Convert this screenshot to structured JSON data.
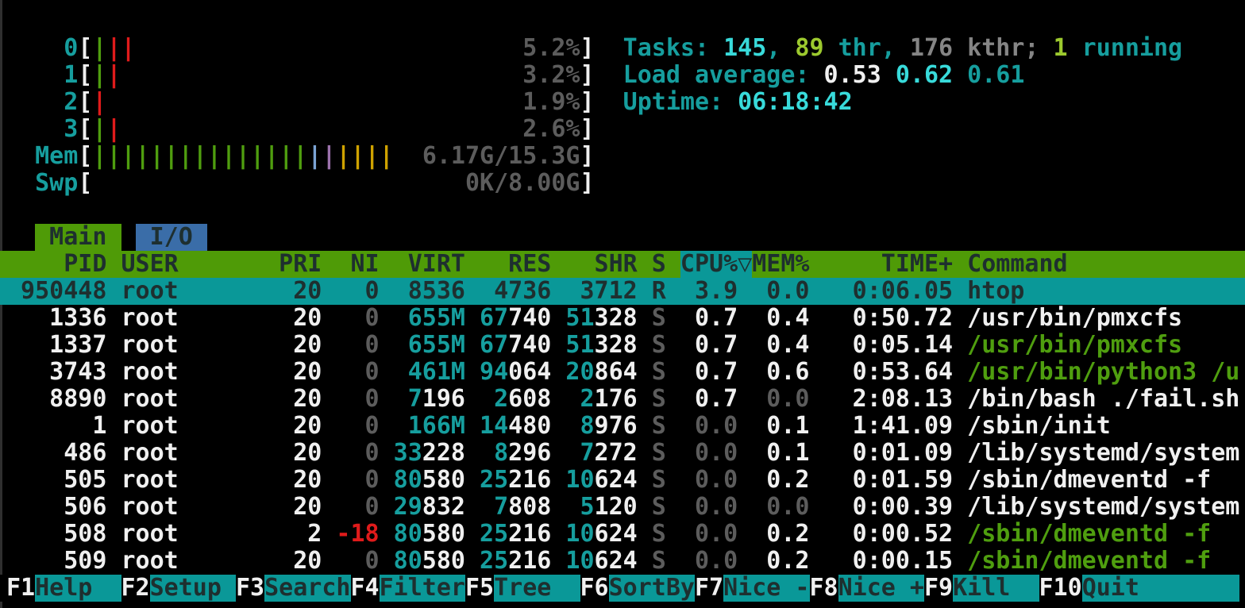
{
  "app_title": "htop",
  "colors": {
    "background": "#000000",
    "foreground": "#f0f0f0",
    "cyan": "#169e9e",
    "bright_cyan": "#38dada",
    "green": "#4f9e0f",
    "bright_green": "#9cc92e",
    "red": "#e01b1b",
    "dim_gray": "#5c5c5c",
    "kernel_gray": "#858585",
    "selection_bg": "#0a9898",
    "header_bg": "#4f9b07",
    "tab_io_bg": "#3a6da8",
    "dark_text": "#1e2f2f",
    "bar_blue": "#7ba3d4",
    "bar_purple": "#9c72ad",
    "bar_yellow": "#cfa200"
  },
  "meters": [
    {
      "name": "cpu-0",
      "label": "0",
      "value": "5.2%",
      "bars": [
        "g",
        "r",
        "r"
      ]
    },
    {
      "name": "cpu-1",
      "label": "1",
      "value": "3.2%",
      "bars": [
        "g",
        "r"
      ]
    },
    {
      "name": "cpu-2",
      "label": "2",
      "value": "1.9%",
      "bars": [
        "r"
      ]
    },
    {
      "name": "cpu-3",
      "label": "3",
      "value": "2.6%",
      "bars": [
        "g",
        "r"
      ]
    },
    {
      "name": "memory",
      "label": "Mem",
      "value": "6.17G/15.3G",
      "bars": [
        "g",
        "g",
        "g",
        "g",
        "g",
        "g",
        "g",
        "g",
        "g",
        "g",
        "g",
        "g",
        "g",
        "g",
        "g",
        "b",
        "p",
        "y",
        "y",
        "y",
        "y"
      ]
    },
    {
      "name": "swap",
      "label": "Swp",
      "value": "0K/8.00G",
      "bars": []
    }
  ],
  "summary_lines": [
    {
      "name": "tasks-summary",
      "segments": [
        [
          "Tasks: ",
          "cy"
        ],
        [
          "145",
          "bc"
        ],
        [
          ", ",
          "cy"
        ],
        [
          "89",
          "bg"
        ],
        [
          " thr",
          "cy"
        ],
        [
          ", ",
          "cy"
        ],
        [
          "176 kthr",
          "d2"
        ],
        [
          "; ",
          "d2"
        ],
        [
          "1",
          "bg"
        ],
        [
          " running",
          "cy"
        ]
      ]
    },
    {
      "name": "load-average",
      "segments": [
        [
          "Load average: ",
          "cy"
        ],
        [
          "0.53 ",
          "w"
        ],
        [
          "0.62 ",
          "bc"
        ],
        [
          "0.61",
          "cy"
        ]
      ]
    },
    {
      "name": "uptime",
      "segments": [
        [
          "Uptime: ",
          "cy"
        ],
        [
          "06:18:42",
          "bc"
        ]
      ]
    }
  ],
  "tabs": [
    {
      "name": "tab-main",
      "label": "Main",
      "active": true
    },
    {
      "name": "tab-io",
      "label": "I/O",
      "active": false
    }
  ],
  "table_header": {
    "columns": [
      "PID",
      "USER",
      "PRI",
      "NI",
      "VIRT",
      "RES",
      "SHR",
      "S",
      "CPU%",
      "MEM%",
      "TIME+",
      "Command"
    ],
    "sort_column": "CPU%",
    "sort_arrow": "▽",
    "segments": [
      [
        "    PID USER       PRI  NI  VIRT   RES   SHR S ",
        "hdr"
      ],
      [
        "CPU%▽",
        "hdrsort"
      ],
      [
        "MEM%     TIME+ Command             ",
        "hdr"
      ]
    ]
  },
  "rows": [
    {
      "pid": "950448",
      "selected": true,
      "segments": [
        [
          " 950448 root        20   0  8536  4736  3712 R  3.9  0.0   0:06.05 htop",
          "sel"
        ]
      ]
    },
    {
      "pid": "1336",
      "selected": false,
      "segments": [
        [
          "   1336 root        20 ",
          "w"
        ],
        [
          "  0",
          "d"
        ],
        [
          "  ",
          "w"
        ],
        [
          "655M",
          "cy"
        ],
        [
          " ",
          "w"
        ],
        [
          "67",
          "cy"
        ],
        [
          "740",
          "w"
        ],
        [
          " ",
          "w"
        ],
        [
          "51",
          "cy"
        ],
        [
          "328",
          "w"
        ],
        [
          " ",
          "w"
        ],
        [
          "S",
          "d"
        ],
        [
          "  0.7  0.4   0:50.72 ",
          "w"
        ],
        [
          "/usr/bin/pmxcfs",
          "w"
        ]
      ]
    },
    {
      "pid": "1337",
      "selected": false,
      "segments": [
        [
          "   1337 root        20 ",
          "w"
        ],
        [
          "  0",
          "d"
        ],
        [
          "  ",
          "w"
        ],
        [
          "655M",
          "cy"
        ],
        [
          " ",
          "w"
        ],
        [
          "67",
          "cy"
        ],
        [
          "740",
          "w"
        ],
        [
          " ",
          "w"
        ],
        [
          "51",
          "cy"
        ],
        [
          "328",
          "w"
        ],
        [
          " ",
          "w"
        ],
        [
          "S",
          "d"
        ],
        [
          "  0.7  0.4   0:05.14 ",
          "w"
        ],
        [
          "/usr/bin/pmxcfs",
          "g"
        ]
      ]
    },
    {
      "pid": "3743",
      "selected": false,
      "segments": [
        [
          "   3743 root        20 ",
          "w"
        ],
        [
          "  0",
          "d"
        ],
        [
          "  ",
          "w"
        ],
        [
          "461M",
          "cy"
        ],
        [
          " ",
          "w"
        ],
        [
          "94",
          "cy"
        ],
        [
          "064",
          "w"
        ],
        [
          " ",
          "w"
        ],
        [
          "20",
          "cy"
        ],
        [
          "864",
          "w"
        ],
        [
          " ",
          "w"
        ],
        [
          "S",
          "d"
        ],
        [
          "  0.7  0.6   0:53.64 ",
          "w"
        ],
        [
          "/usr/bin/python3 /u",
          "g"
        ]
      ]
    },
    {
      "pid": "8890",
      "selected": false,
      "segments": [
        [
          "   8890 root        20 ",
          "w"
        ],
        [
          "  0",
          "d"
        ],
        [
          "  ",
          "w"
        ],
        [
          "7",
          "cy"
        ],
        [
          "196",
          "w"
        ],
        [
          "  ",
          "w"
        ],
        [
          "2",
          "cy"
        ],
        [
          "608",
          "w"
        ],
        [
          "  ",
          "w"
        ],
        [
          "2",
          "cy"
        ],
        [
          "176",
          "w"
        ],
        [
          " ",
          "w"
        ],
        [
          "S",
          "d"
        ],
        [
          "  0.7",
          "w"
        ],
        [
          " ",
          "w"
        ],
        [
          " 0.0",
          "d"
        ],
        [
          "   2:08.13 ",
          "w"
        ],
        [
          "/bin/bash ./fail.sh",
          "w"
        ]
      ]
    },
    {
      "pid": "1",
      "selected": false,
      "segments": [
        [
          "      1 root        20 ",
          "w"
        ],
        [
          "  0",
          "d"
        ],
        [
          "  ",
          "w"
        ],
        [
          "166M",
          "cy"
        ],
        [
          " ",
          "w"
        ],
        [
          "14",
          "cy"
        ],
        [
          "480",
          "w"
        ],
        [
          "  ",
          "w"
        ],
        [
          "8",
          "cy"
        ],
        [
          "976",
          "w"
        ],
        [
          " ",
          "w"
        ],
        [
          "S",
          "d"
        ],
        [
          " ",
          "w"
        ],
        [
          " 0.0",
          "d"
        ],
        [
          " ",
          "w"
        ],
        [
          " 0.1",
          "w"
        ],
        [
          "   1:41.09 ",
          "w"
        ],
        [
          "/sbin/init",
          "w"
        ]
      ]
    },
    {
      "pid": "486",
      "selected": false,
      "segments": [
        [
          "    486 root        20 ",
          "w"
        ],
        [
          "  0",
          "d"
        ],
        [
          " ",
          "w"
        ],
        [
          "33",
          "cy"
        ],
        [
          "228",
          "w"
        ],
        [
          "  ",
          "w"
        ],
        [
          "8",
          "cy"
        ],
        [
          "296",
          "w"
        ],
        [
          "  ",
          "w"
        ],
        [
          "7",
          "cy"
        ],
        [
          "272",
          "w"
        ],
        [
          " ",
          "w"
        ],
        [
          "S",
          "d"
        ],
        [
          " ",
          "w"
        ],
        [
          " 0.0",
          "d"
        ],
        [
          " ",
          "w"
        ],
        [
          " 0.1",
          "w"
        ],
        [
          "   0:01.09 ",
          "w"
        ],
        [
          "/lib/systemd/system",
          "w"
        ]
      ]
    },
    {
      "pid": "505",
      "selected": false,
      "segments": [
        [
          "    505 root        20 ",
          "w"
        ],
        [
          "  0",
          "d"
        ],
        [
          " ",
          "w"
        ],
        [
          "80",
          "cy"
        ],
        [
          "580",
          "w"
        ],
        [
          " ",
          "w"
        ],
        [
          "25",
          "cy"
        ],
        [
          "216",
          "w"
        ],
        [
          " ",
          "w"
        ],
        [
          "10",
          "cy"
        ],
        [
          "624",
          "w"
        ],
        [
          " ",
          "w"
        ],
        [
          "S",
          "d"
        ],
        [
          " ",
          "w"
        ],
        [
          " 0.0",
          "d"
        ],
        [
          " ",
          "w"
        ],
        [
          " 0.2",
          "w"
        ],
        [
          "   0:01.59 ",
          "w"
        ],
        [
          "/sbin/dmeventd -f",
          "w"
        ]
      ]
    },
    {
      "pid": "506",
      "selected": false,
      "segments": [
        [
          "    506 root        20 ",
          "w"
        ],
        [
          "  0",
          "d"
        ],
        [
          " ",
          "w"
        ],
        [
          "29",
          "cy"
        ],
        [
          "832",
          "w"
        ],
        [
          "  ",
          "w"
        ],
        [
          "7",
          "cy"
        ],
        [
          "808",
          "w"
        ],
        [
          "  ",
          "w"
        ],
        [
          "5",
          "cy"
        ],
        [
          "120",
          "w"
        ],
        [
          " ",
          "w"
        ],
        [
          "S",
          "d"
        ],
        [
          " ",
          "w"
        ],
        [
          " 0.0",
          "d"
        ],
        [
          " ",
          "w"
        ],
        [
          " 0.0",
          "d"
        ],
        [
          "   0:00.39 ",
          "w"
        ],
        [
          "/lib/systemd/system",
          "w"
        ]
      ]
    },
    {
      "pid": "508",
      "selected": false,
      "segments": [
        [
          "    508 root         2 ",
          "w"
        ],
        [
          "-18",
          "r"
        ],
        [
          " ",
          "w"
        ],
        [
          "80",
          "cy"
        ],
        [
          "580",
          "w"
        ],
        [
          " ",
          "w"
        ],
        [
          "25",
          "cy"
        ],
        [
          "216",
          "w"
        ],
        [
          " ",
          "w"
        ],
        [
          "10",
          "cy"
        ],
        [
          "624",
          "w"
        ],
        [
          " ",
          "w"
        ],
        [
          "S",
          "d"
        ],
        [
          " ",
          "w"
        ],
        [
          " 0.0",
          "d"
        ],
        [
          " ",
          "w"
        ],
        [
          " 0.2",
          "w"
        ],
        [
          "   0:00.52 ",
          "w"
        ],
        [
          "/sbin/dmeventd -f",
          "g"
        ]
      ]
    },
    {
      "pid": "509",
      "selected": false,
      "segments": [
        [
          "    509 root        20 ",
          "w"
        ],
        [
          "  0",
          "d"
        ],
        [
          " ",
          "w"
        ],
        [
          "80",
          "cy"
        ],
        [
          "580",
          "w"
        ],
        [
          " ",
          "w"
        ],
        [
          "25",
          "cy"
        ],
        [
          "216",
          "w"
        ],
        [
          " ",
          "w"
        ],
        [
          "10",
          "cy"
        ],
        [
          "624",
          "w"
        ],
        [
          " ",
          "w"
        ],
        [
          "S",
          "d"
        ],
        [
          " ",
          "w"
        ],
        [
          " 0.0",
          "d"
        ],
        [
          " ",
          "w"
        ],
        [
          " 0.2",
          "w"
        ],
        [
          "   0:00.15 ",
          "w"
        ],
        [
          "/sbin/dmeventd -f",
          "g"
        ]
      ]
    }
  ],
  "fn_keys": [
    {
      "key": "F1",
      "label": "Help"
    },
    {
      "key": "F2",
      "label": "Setup"
    },
    {
      "key": "F3",
      "label": "Search"
    },
    {
      "key": "F4",
      "label": "Filter"
    },
    {
      "key": "F5",
      "label": "Tree"
    },
    {
      "key": "F6",
      "label": "SortBy"
    },
    {
      "key": "F7",
      "label": "Nice -"
    },
    {
      "key": "F8",
      "label": "Nice +"
    },
    {
      "key": "F9",
      "label": "Kill"
    },
    {
      "key": "F10",
      "label": "Quit"
    }
  ]
}
